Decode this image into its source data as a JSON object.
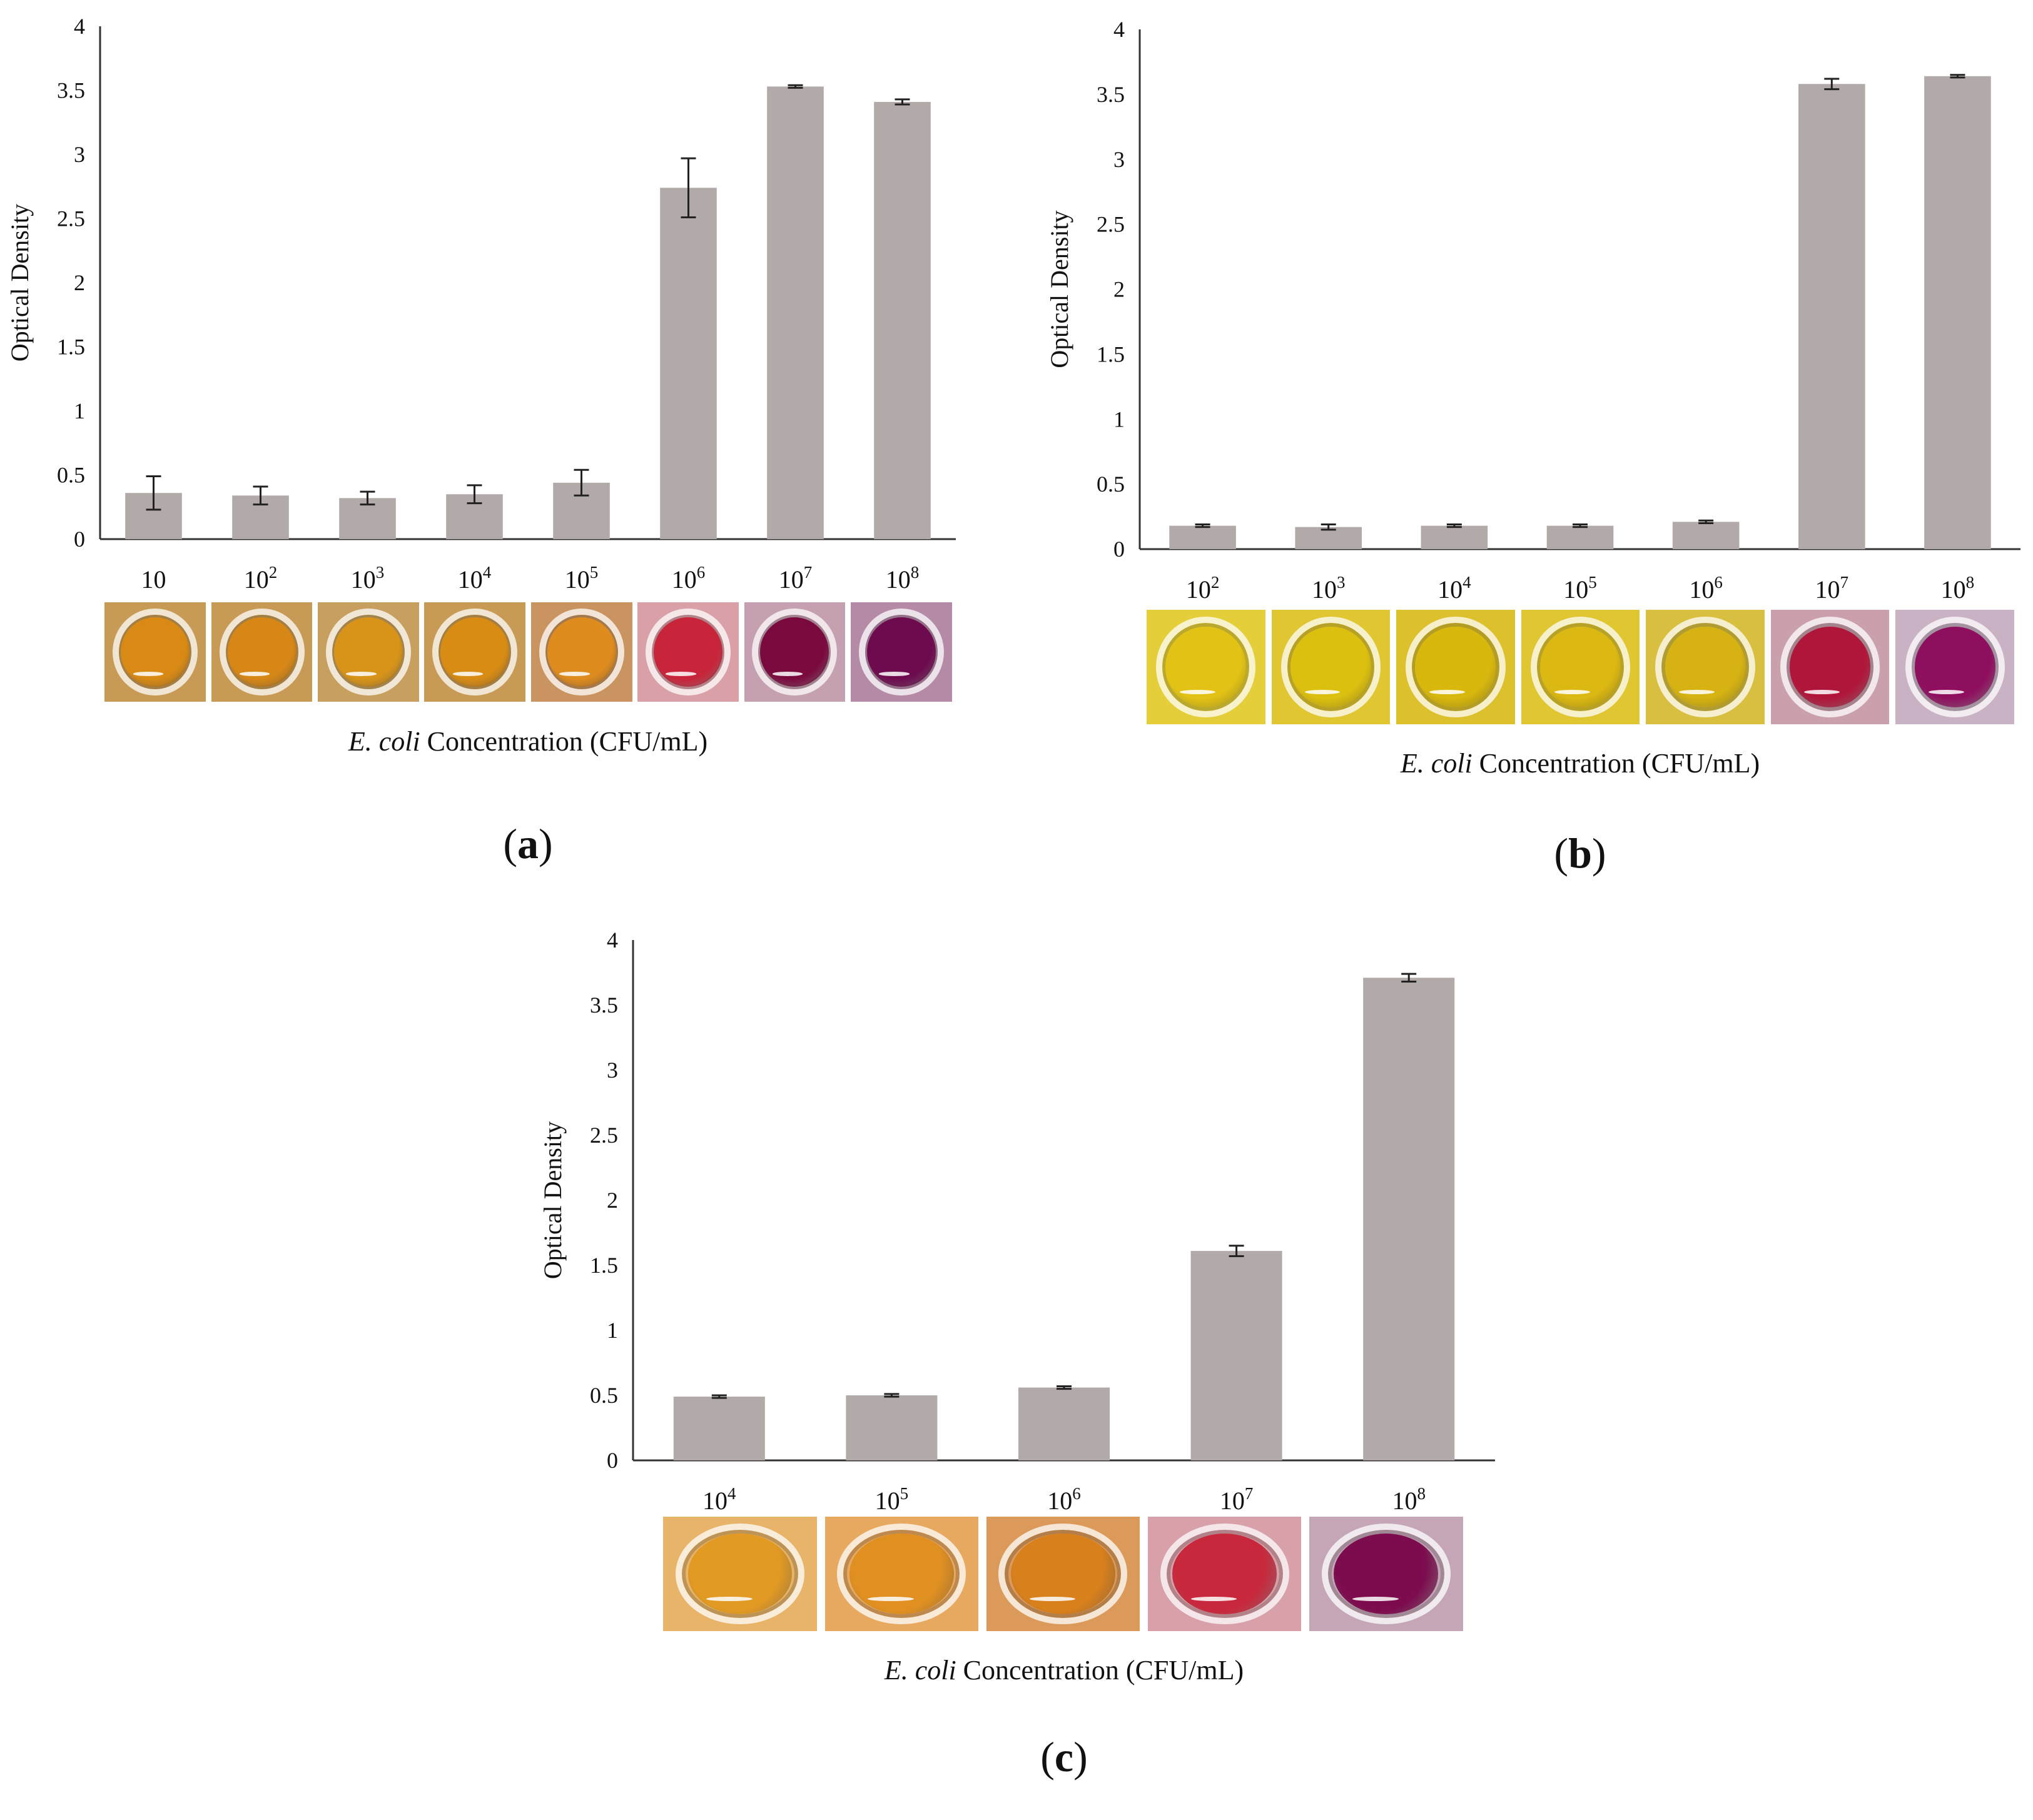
{
  "chart_data": [
    {
      "type": "bar",
      "panel_label": "a",
      "categories": [
        {
          "base": "10",
          "exp": ""
        },
        {
          "base": "10",
          "exp": "2"
        },
        {
          "base": "10",
          "exp": "3"
        },
        {
          "base": "10",
          "exp": "4"
        },
        {
          "base": "10",
          "exp": "5"
        },
        {
          "base": "10",
          "exp": "6"
        },
        {
          "base": "10",
          "exp": "7"
        },
        {
          "base": "10",
          "exp": "8"
        }
      ],
      "values": [
        0.36,
        0.34,
        0.32,
        0.35,
        0.44,
        2.74,
        3.53,
        3.41
      ],
      "errors": [
        0.13,
        0.07,
        0.05,
        0.07,
        0.1,
        0.23,
        0.01,
        0.02
      ],
      "well_colors": [
        "#d98a14",
        "#d68716",
        "#d89418",
        "#d98c14",
        "#df8c1e",
        "#c8243a",
        "#7a0a3e",
        "#6d0b4e"
      ],
      "well_bg": [
        "#c79a55",
        "#c79a55",
        "#c7a060",
        "#c79a55",
        "#c99460",
        "#d9a0a8",
        "#c5a0b0",
        "#b58aa6"
      ],
      "ylabel": "Optical Density",
      "xlabel_italic": "E. coli",
      "xlabel_rest": " Concentration (CFU/mL)",
      "ylim": [
        0,
        4
      ],
      "yticks": [
        {
          "v": 0,
          "t": "0"
        },
        {
          "v": 0.5,
          "t": "0.5"
        },
        {
          "v": 1,
          "t": "1"
        },
        {
          "v": 1.5,
          "t": "1.5"
        },
        {
          "v": 2,
          "t": "2"
        },
        {
          "v": 2.5,
          "t": "2.5"
        },
        {
          "v": 3,
          "t": "3"
        },
        {
          "v": 3.5,
          "t": "3.5"
        },
        {
          "v": 4,
          "t": "4"
        }
      ],
      "bar_color": "#b1aaa8",
      "grid": false
    },
    {
      "type": "bar",
      "panel_label": "b",
      "categories": [
        {
          "base": "10",
          "exp": "2"
        },
        {
          "base": "10",
          "exp": "3"
        },
        {
          "base": "10",
          "exp": "4"
        },
        {
          "base": "10",
          "exp": "5"
        },
        {
          "base": "10",
          "exp": "6"
        },
        {
          "base": "10",
          "exp": "7"
        },
        {
          "base": "10",
          "exp": "8"
        }
      ],
      "values": [
        0.18,
        0.17,
        0.18,
        0.18,
        0.21,
        3.58,
        3.64
      ],
      "errors": [
        0.01,
        0.02,
        0.01,
        0.01,
        0.01,
        0.04,
        0.01
      ],
      "well_colors": [
        "#e2c215",
        "#dcc010",
        "#d9b80e",
        "#dcb812",
        "#d6b212",
        "#b0163a",
        "#8e0f5e"
      ],
      "well_bg": [
        "#e4cf3a",
        "#e0c630",
        "#dcc02c",
        "#e0c630",
        "#d8bf40",
        "#caa0ac",
        "#c9b2c4"
      ],
      "ylabel": "Optical Density",
      "xlabel_italic": "E. coli",
      "xlabel_rest": " Concentration (CFU/mL)",
      "ylim": [
        0,
        4
      ],
      "yticks": [
        {
          "v": 0,
          "t": "0"
        },
        {
          "v": 0.5,
          "t": "0.5"
        },
        {
          "v": 1,
          "t": "1"
        },
        {
          "v": 1.5,
          "t": "1.5"
        },
        {
          "v": 2,
          "t": "2"
        },
        {
          "v": 2.5,
          "t": "2.5"
        },
        {
          "v": 3,
          "t": "3"
        },
        {
          "v": 3.5,
          "t": "3.5"
        },
        {
          "v": 4,
          "t": "4"
        }
      ],
      "bar_color": "#b1aaa8",
      "grid": false
    },
    {
      "type": "bar",
      "panel_label": "c",
      "categories": [
        {
          "base": "10",
          "exp": "4"
        },
        {
          "base": "10",
          "exp": "5"
        },
        {
          "base": "10",
          "exp": "6"
        },
        {
          "base": "10",
          "exp": "7"
        },
        {
          "base": "10",
          "exp": "8"
        }
      ],
      "values": [
        0.49,
        0.5,
        0.56,
        1.61,
        3.71
      ],
      "errors": [
        0.01,
        0.01,
        0.01,
        0.04,
        0.03
      ],
      "well_colors": [
        "#e29a22",
        "#e09020",
        "#d8801c",
        "#c8283c",
        "#7c0c4e"
      ],
      "well_bg": [
        "#e7b46a",
        "#e7a860",
        "#dc9a5a",
        "#d8a0a8",
        "#c4a6b6"
      ],
      "ylabel": "Optical Density",
      "xlabel_italic": "E. coli",
      "xlabel_rest": " Concentration (CFU/mL)",
      "ylim": [
        0,
        4
      ],
      "yticks": [
        {
          "v": 0,
          "t": "0"
        },
        {
          "v": 0.5,
          "t": "0.5"
        },
        {
          "v": 1,
          "t": "1"
        },
        {
          "v": 1.5,
          "t": "1.5"
        },
        {
          "v": 2,
          "t": "2"
        },
        {
          "v": 2.5,
          "t": "2.5"
        },
        {
          "v": 3,
          "t": "3"
        },
        {
          "v": 3.5,
          "t": "3.5"
        },
        {
          "v": 4,
          "t": "4"
        }
      ],
      "bar_color": "#b1aaa8",
      "grid": false
    }
  ]
}
